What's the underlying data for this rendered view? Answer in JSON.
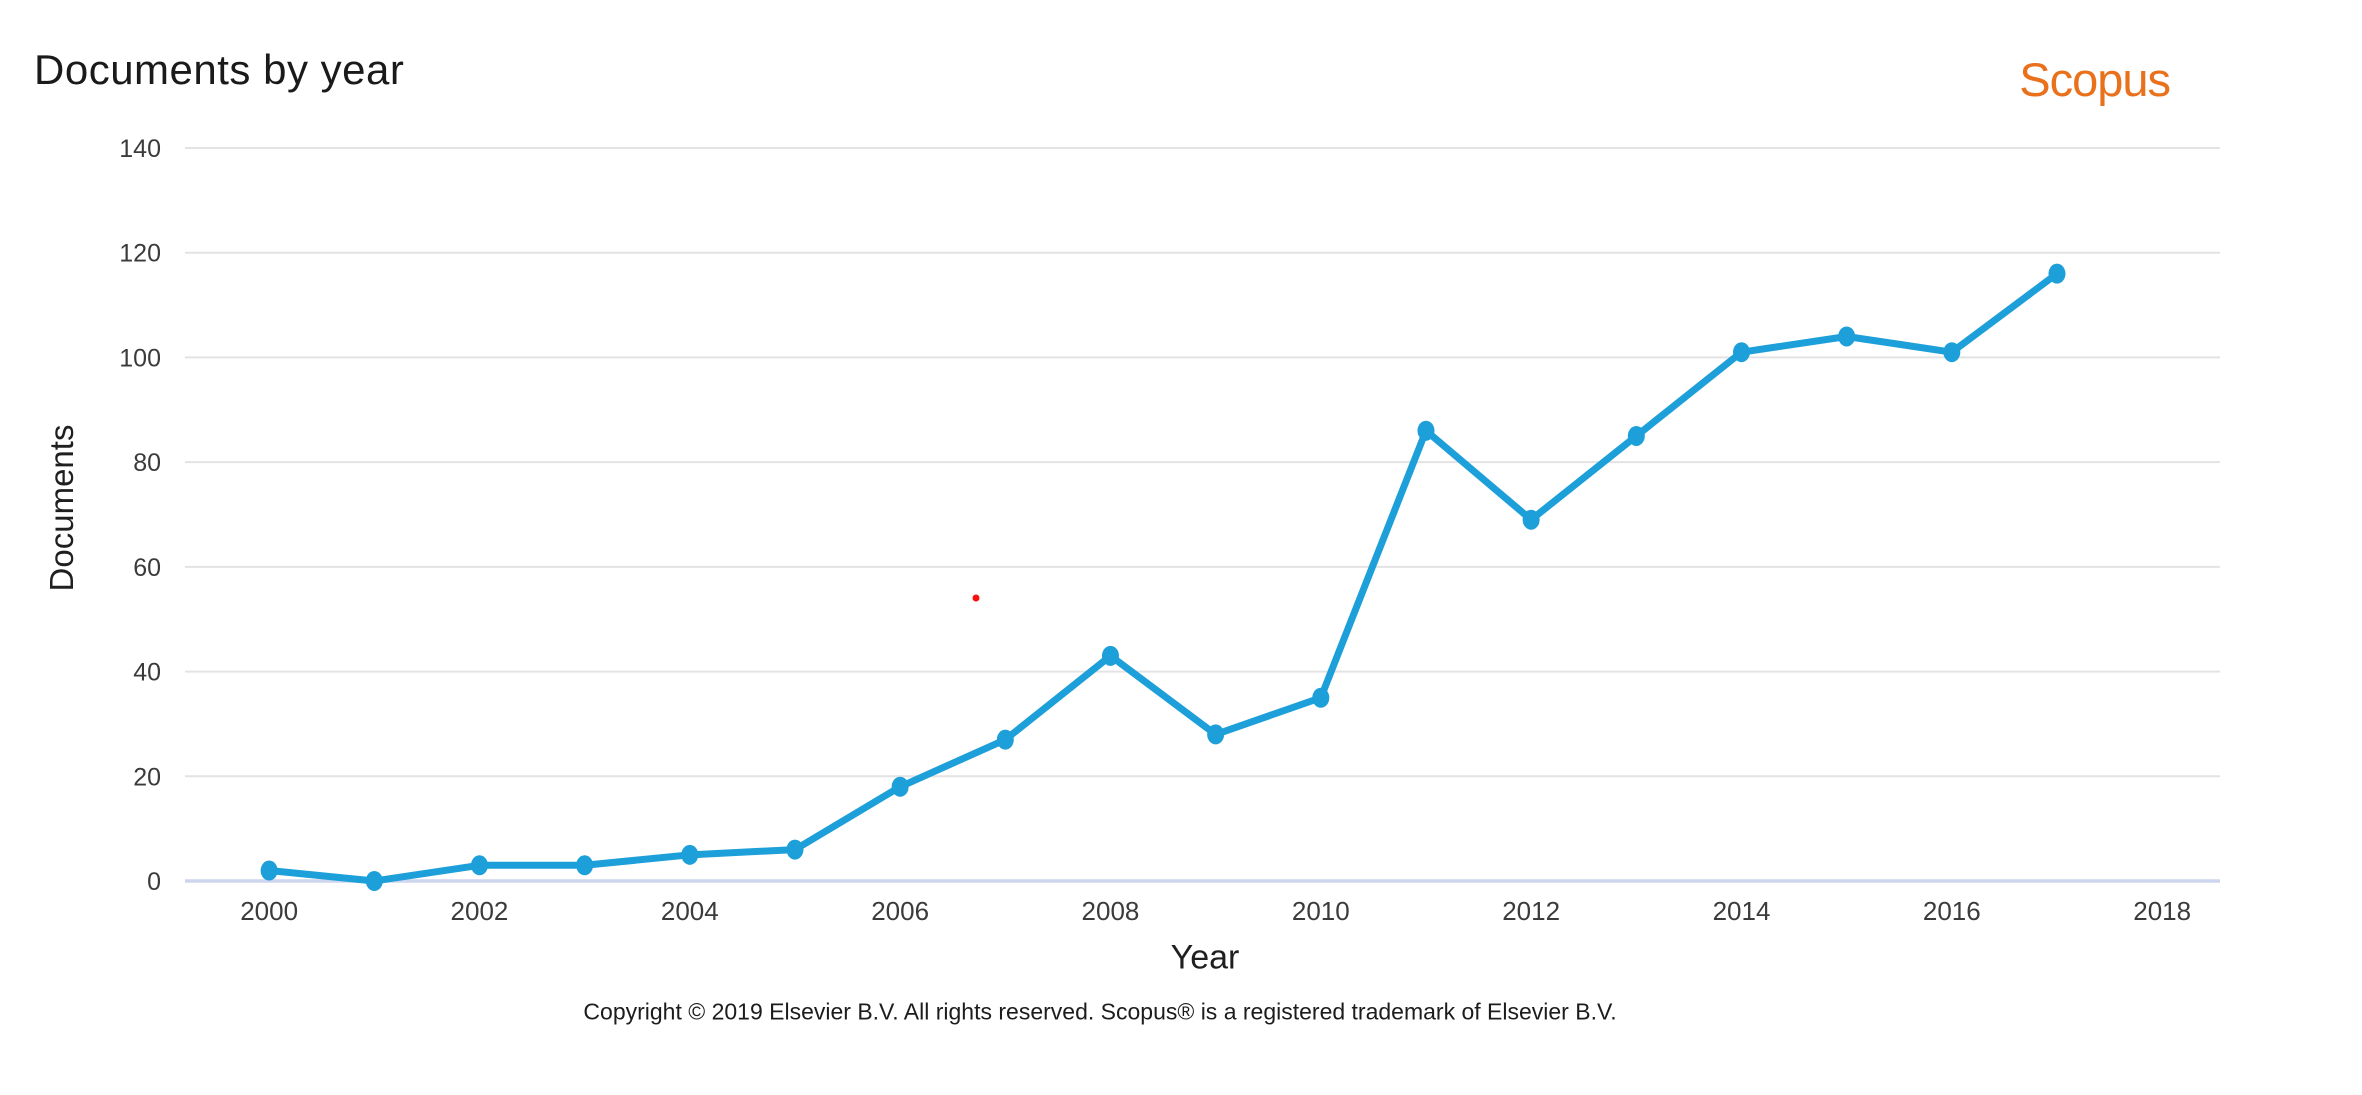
{
  "header": {
    "title": "Documents by year",
    "logo_text": "Scopus"
  },
  "chart_data": {
    "type": "line",
    "title": "Documents by year",
    "xlabel": "Year",
    "ylabel": "Documents",
    "x": [
      2000,
      2001,
      2002,
      2003,
      2004,
      2005,
      2006,
      2007,
      2008,
      2009,
      2010,
      2011,
      2012,
      2013,
      2014,
      2015,
      2016,
      2017
    ],
    "series": [
      {
        "name": "Documents",
        "values": [
          2,
          0,
          3,
          3,
          5,
          6,
          18,
          27,
          43,
          28,
          35,
          86,
          69,
          85,
          101,
          104,
          101,
          116
        ]
      }
    ],
    "x_ticks": [
      2000,
      2002,
      2004,
      2006,
      2008,
      2010,
      2012,
      2014,
      2016,
      2018
    ],
    "y_ticks": [
      0,
      20,
      40,
      60,
      80,
      100,
      120,
      140
    ],
    "xlim": [
      1999.2,
      2018.55
    ],
    "ylim": [
      0,
      140
    ],
    "grid": true,
    "legend": "none"
  },
  "footer": {
    "copyright": "Copyright © 2019 Elsevier B.V. All rights reserved. Scopus® is a registered trademark of Elsevier B.V."
  },
  "colors": {
    "line_blue": "#1d9fd9",
    "accent_orange": "#e9711c",
    "gridline": "#e3e3e3",
    "zero_axis_line": "#cdd6ee",
    "tick_text": "#3b3b3b",
    "stray_dot_red": "#fb0f0c"
  }
}
